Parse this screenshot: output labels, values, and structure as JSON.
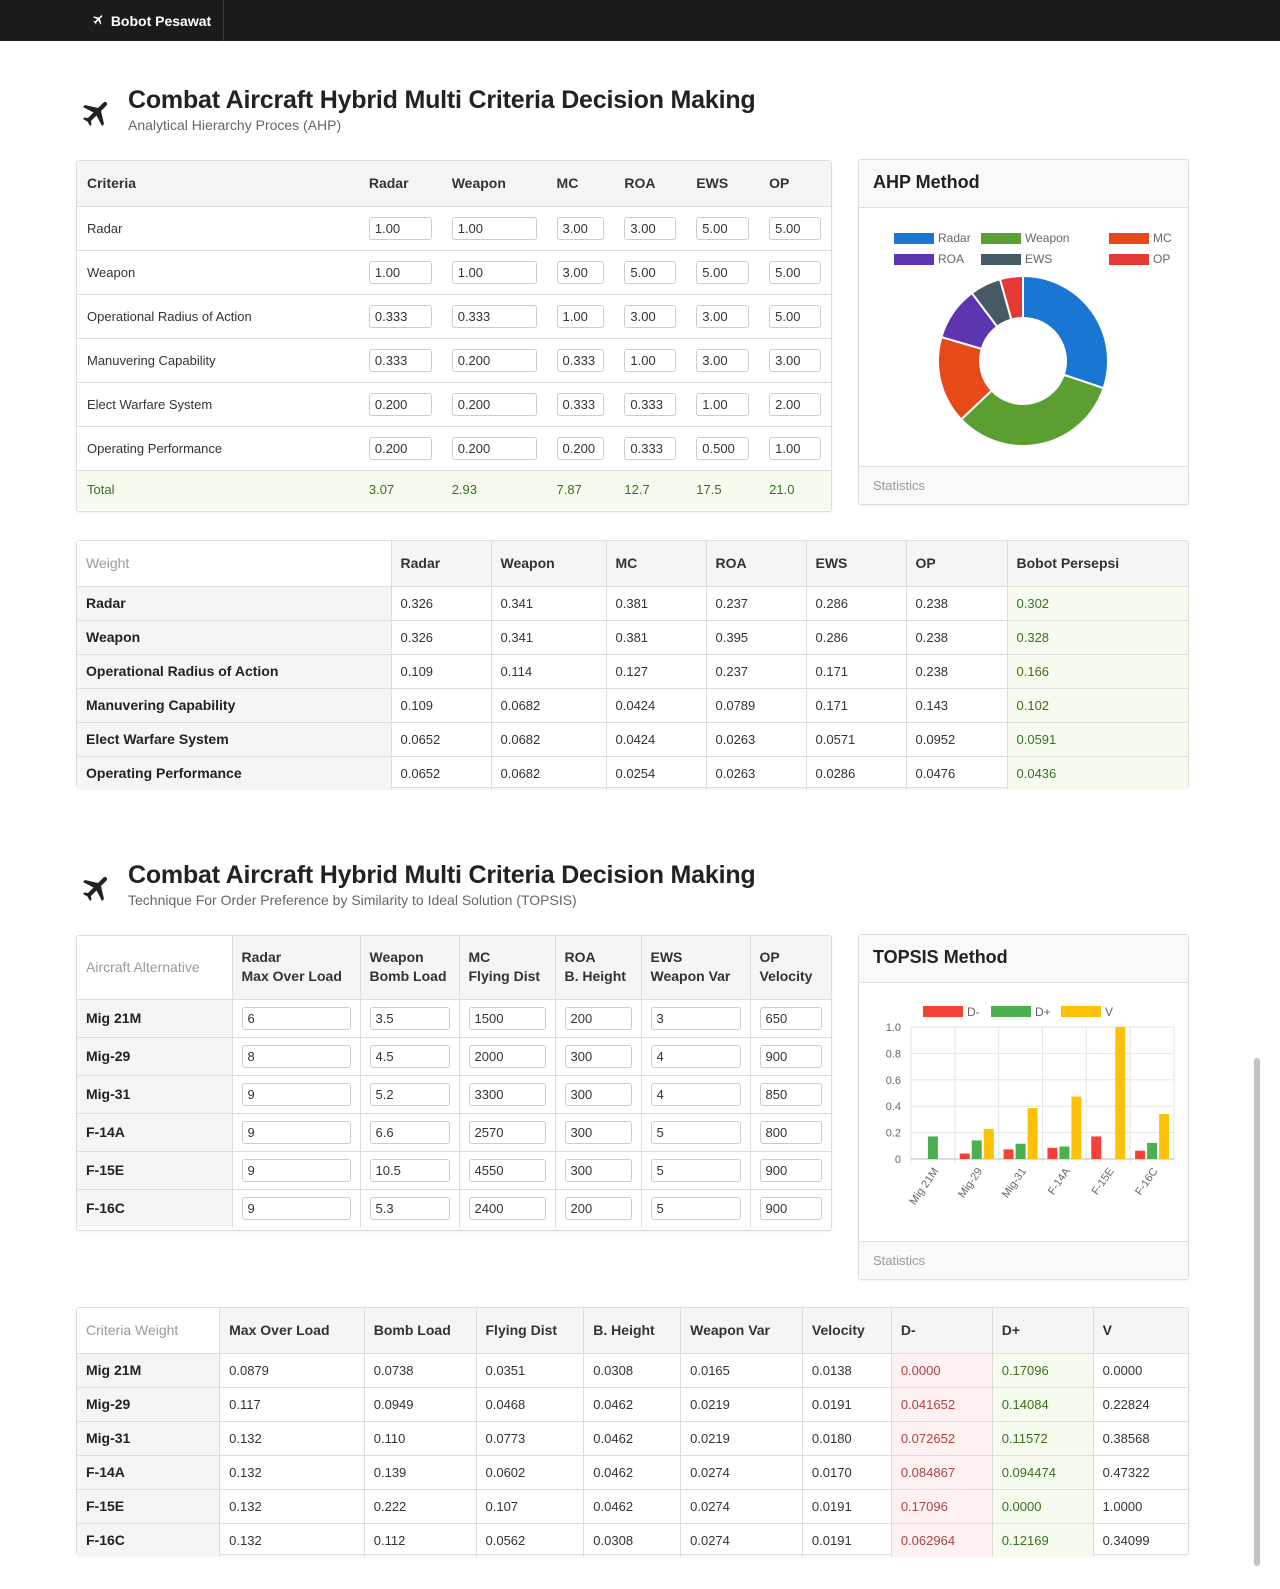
{
  "navbar": {
    "brand": "Bobot Pesawat"
  },
  "ahp_section": {
    "title": "Combat Aircraft Hybrid Multi Criteria Decision Making",
    "subtitle": "Analytical Hierarchy Proces (AHP)"
  },
  "pairwise": {
    "headers": [
      "Criteria",
      "Radar",
      "Weapon",
      "MC",
      "ROA",
      "EWS",
      "OP"
    ],
    "rows": [
      {
        "label": "Radar",
        "values": [
          "1.00",
          "1.00",
          "3.00",
          "3.00",
          "5.00",
          "5.00"
        ]
      },
      {
        "label": "Weapon",
        "values": [
          "1.00",
          "1.00",
          "3.00",
          "5.00",
          "5.00",
          "5.00"
        ]
      },
      {
        "label": "Operational Radius of Action",
        "values": [
          "0.333",
          "0.333",
          "1.00",
          "3.00",
          "3.00",
          "5.00"
        ]
      },
      {
        "label": "Manuvering Capability",
        "values": [
          "0.333",
          "0.200",
          "0.333",
          "1.00",
          "3.00",
          "3.00"
        ]
      },
      {
        "label": "Elect Warfare System",
        "values": [
          "0.200",
          "0.200",
          "0.333",
          "0.333",
          "1.00",
          "2.00"
        ]
      },
      {
        "label": "Operating Performance",
        "values": [
          "0.200",
          "0.200",
          "0.200",
          "0.333",
          "0.500",
          "1.00"
        ]
      }
    ],
    "total": {
      "label": "Total",
      "values": [
        "3.07",
        "2.93",
        "7.87",
        "12.7",
        "17.5",
        "21.0"
      ]
    }
  },
  "ahp_chart": {
    "title": "AHP Method",
    "footer": "Statistics",
    "legend": [
      {
        "name": "Radar",
        "color": "#1976d2"
      },
      {
        "name": "Weapon",
        "color": "#5c9e31"
      },
      {
        "name": "MC",
        "color": "#e64a19"
      },
      {
        "name": "ROA",
        "color": "#5e35b1"
      },
      {
        "name": "EWS",
        "color": "#455a64"
      },
      {
        "name": "OP",
        "color": "#e53935"
      }
    ]
  },
  "weight_table": {
    "corner": "Weight",
    "headers": [
      "Radar",
      "Weapon",
      "MC",
      "ROA",
      "EWS",
      "OP",
      "Bobot Persepsi"
    ],
    "rows": [
      {
        "label": "Radar",
        "values": [
          "0.326",
          "0.341",
          "0.381",
          "0.237",
          "0.286",
          "0.238"
        ],
        "bobot": "0.302"
      },
      {
        "label": "Weapon",
        "values": [
          "0.326",
          "0.341",
          "0.381",
          "0.395",
          "0.286",
          "0.238"
        ],
        "bobot": "0.328"
      },
      {
        "label": "Operational Radius of Action",
        "values": [
          "0.109",
          "0.114",
          "0.127",
          "0.237",
          "0.171",
          "0.238"
        ],
        "bobot": "0.166"
      },
      {
        "label": "Manuvering Capability",
        "values": [
          "0.109",
          "0.0682",
          "0.0424",
          "0.0789",
          "0.171",
          "0.143"
        ],
        "bobot": "0.102"
      },
      {
        "label": "Elect Warfare System",
        "values": [
          "0.0652",
          "0.0682",
          "0.0424",
          "0.0263",
          "0.0571",
          "0.0952"
        ],
        "bobot": "0.0591"
      },
      {
        "label": "Operating Performance",
        "values": [
          "0.0652",
          "0.0682",
          "0.0254",
          "0.0263",
          "0.0286",
          "0.0476"
        ],
        "bobot": "0.0436"
      }
    ]
  },
  "topsis_section": {
    "title": "Combat Aircraft Hybrid Multi Criteria Decision Making",
    "subtitle": "Technique For Order Preference by Similarity to Ideal Solution (TOPSIS)"
  },
  "alternatives": {
    "corner": "Aircraft Alternative",
    "headers": [
      {
        "l1": "Radar",
        "l2": "Max Over Load"
      },
      {
        "l1": "Weapon",
        "l2": "Bomb Load"
      },
      {
        "l1": "MC",
        "l2": "Flying Dist"
      },
      {
        "l1": "ROA",
        "l2": "B. Height"
      },
      {
        "l1": "EWS",
        "l2": "Weapon Var"
      },
      {
        "l1": "OP",
        "l2": "Velocity"
      }
    ],
    "rows": [
      {
        "label": "Mig 21M",
        "values": [
          "6",
          "3.5",
          "1500",
          "200",
          "3",
          "650"
        ]
      },
      {
        "label": "Mig-29",
        "values": [
          "8",
          "4.5",
          "2000",
          "300",
          "4",
          "900"
        ]
      },
      {
        "label": "Mig-31",
        "values": [
          "9",
          "5.2",
          "3300",
          "300",
          "4",
          "850"
        ]
      },
      {
        "label": "F-14A",
        "values": [
          "9",
          "6.6",
          "2570",
          "300",
          "5",
          "800"
        ]
      },
      {
        "label": "F-15E",
        "values": [
          "9",
          "10.5",
          "4550",
          "300",
          "5",
          "900"
        ]
      },
      {
        "label": "F-16C",
        "values": [
          "9",
          "5.3",
          "2400",
          "200",
          "5",
          "900"
        ]
      }
    ]
  },
  "topsis_chart": {
    "title": "TOPSIS Method",
    "footer": "Statistics"
  },
  "criteria_weight": {
    "corner": "Criteria Weight",
    "headers": [
      "Max Over Load",
      "Bomb Load",
      "Flying Dist",
      "B. Height",
      "Weapon Var",
      "Velocity",
      "D-",
      "D+",
      "V"
    ],
    "rows": [
      {
        "label": "Mig 21M",
        "values": [
          "0.0879",
          "0.0738",
          "0.0351",
          "0.0308",
          "0.0165",
          "0.0138"
        ],
        "dm": "0.0000",
        "dp": "0.17096",
        "v": "0.0000"
      },
      {
        "label": "Mig-29",
        "values": [
          "0.117",
          "0.0949",
          "0.0468",
          "0.0462",
          "0.0219",
          "0.0191"
        ],
        "dm": "0.041652",
        "dp": "0.14084",
        "v": "0.22824"
      },
      {
        "label": "Mig-31",
        "values": [
          "0.132",
          "0.110",
          "0.0773",
          "0.0462",
          "0.0219",
          "0.0180"
        ],
        "dm": "0.072652",
        "dp": "0.11572",
        "v": "0.38568"
      },
      {
        "label": "F-14A",
        "values": [
          "0.132",
          "0.139",
          "0.0602",
          "0.0462",
          "0.0274",
          "0.0170"
        ],
        "dm": "0.084867",
        "dp": "0.094474",
        "v": "0.47322"
      },
      {
        "label": "F-15E",
        "values": [
          "0.132",
          "0.222",
          "0.107",
          "0.0462",
          "0.0274",
          "0.0191"
        ],
        "dm": "0.17096",
        "dp": "0.0000",
        "v": "1.0000"
      },
      {
        "label": "F-16C",
        "values": [
          "0.132",
          "0.112",
          "0.0562",
          "0.0308",
          "0.0274",
          "0.0191"
        ],
        "dm": "0.062964",
        "dp": "0.12169",
        "v": "0.34099"
      }
    ]
  },
  "chart_data": [
    {
      "type": "pie",
      "title": "AHP Method",
      "labels": [
        "Radar",
        "Weapon",
        "MC",
        "ROA",
        "EWS",
        "OP"
      ],
      "values": [
        0.302,
        0.328,
        0.166,
        0.102,
        0.0591,
        0.0436
      ],
      "colors": [
        "#1976d2",
        "#5c9e31",
        "#e64a19",
        "#5e35b1",
        "#455a64",
        "#e53935"
      ],
      "donut": true,
      "legend": "top"
    },
    {
      "type": "bar",
      "title": "TOPSIS Method",
      "categories": [
        "Mig 21M",
        "Mig-29",
        "Mig-31",
        "F-14A",
        "F-15E",
        "F-16C"
      ],
      "series": [
        {
          "name": "D-",
          "color": "#f44336",
          "values": [
            0.0,
            0.041652,
            0.072652,
            0.084867,
            0.17096,
            0.062964
          ]
        },
        {
          "name": "D+",
          "color": "#4caf50",
          "values": [
            0.17096,
            0.14084,
            0.11572,
            0.094474,
            0.0,
            0.12169
          ]
        },
        {
          "name": "V",
          "color": "#ffc107",
          "values": [
            0.0,
            0.22824,
            0.38568,
            0.47322,
            1.0,
            0.34099
          ]
        }
      ],
      "ylim": [
        0,
        1.0
      ],
      "yticks": [
        "0",
        "0.2",
        "0.4",
        "0.6",
        "0.8",
        "1.0"
      ],
      "legend": "top"
    }
  ]
}
